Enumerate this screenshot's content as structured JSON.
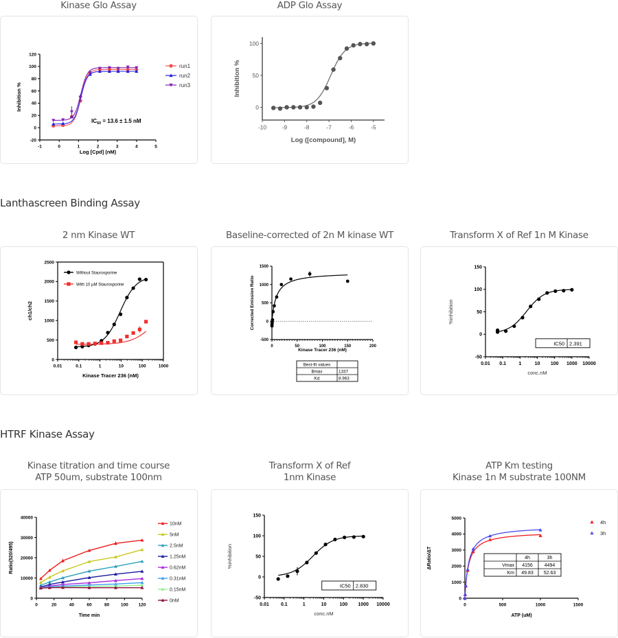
{
  "sections": [
    {
      "title": "Lanthascreen Binding Assay"
    },
    {
      "title": "HTRF Kinase Assay"
    }
  ],
  "panels": {
    "kinase_glo": {
      "title": "Kinase Glo Assay"
    },
    "adp_glo": {
      "title": "ADP Glo Assay"
    },
    "lantha_wt": {
      "title": "2 nm Kinase WT"
    },
    "lantha_baseline": {
      "title": "Baseline-corrected of 2n M kinase WT"
    },
    "lantha_transform": {
      "title": "Transform X of Ref  1n M Kinase"
    },
    "htrf_titration": {
      "title_line1": "Kinase titration and time course",
      "title_line2": "ATP 50um, substrate 100nm"
    },
    "htrf_transform": {
      "title_line1": "Transform X of Ref",
      "title_line2": "1nm Kinase"
    },
    "htrf_atp": {
      "title_line1": "ATP Km testing",
      "title_line2": "Kinase 1n M substrate 100NM"
    }
  },
  "chart_data": [
    {
      "id": "kinase_glo",
      "type": "line",
      "xlabel": "Log [Cpd] (nM)",
      "ylabel": "Inhibition %",
      "xlim": [
        -1,
        5
      ],
      "ylim": [
        -20,
        120
      ],
      "xticks": [
        -1,
        0,
        1,
        2,
        3,
        4,
        5
      ],
      "yticks": [
        -20,
        0,
        20,
        40,
        60,
        80,
        100,
        120
      ],
      "annotation": "IC50 = 13.6 ± 1.5 nM",
      "annotation_main": "IC",
      "annotation_sub": "50",
      "annotation_rest": " = 13.6 ± 1.5 nM",
      "legend_position": "right",
      "x": [
        -0.3,
        0.2,
        0.65,
        1.1,
        1.6,
        2.1,
        2.6,
        3.05,
        3.55,
        4.0
      ],
      "series": [
        {
          "name": "run1",
          "color": "#f05050",
          "marker": "circle",
          "values": [
            3,
            4,
            18,
            44,
            89,
            95,
            95,
            95,
            95,
            95
          ]
        },
        {
          "name": "run2",
          "color": "#2020e0",
          "marker": "triangle-up",
          "values": [
            6,
            7,
            18,
            52,
            87,
            92,
            92,
            92,
            92,
            92
          ]
        },
        {
          "name": "run3",
          "color": "#8020b0",
          "marker": "triangle-down",
          "values": [
            12,
            13,
            26,
            49,
            90,
            97,
            98,
            97,
            99,
            98
          ]
        }
      ]
    },
    {
      "id": "adp_glo",
      "type": "scatter",
      "xlabel": "Log ([compound], M)",
      "ylabel": "Inhibition %",
      "xlim": [
        -10,
        -4.5
      ],
      "ylim": [
        -20,
        110
      ],
      "xticks": [
        -10,
        -9,
        -8,
        -7,
        -6,
        -5
      ],
      "yticks": [
        0,
        50,
        100
      ],
      "color": "#555555",
      "x": [
        -9.5,
        -9.2,
        -8.9,
        -8.6,
        -8.3,
        -8.0,
        -7.7,
        -7.4,
        -7.1,
        -6.8,
        -6.5,
        -6.2,
        -5.9,
        -5.6,
        -5.3,
        -5.0
      ],
      "values": [
        -1,
        -2,
        0,
        0,
        0,
        0,
        1,
        7,
        30,
        59,
        77,
        92,
        97,
        99,
        99,
        100
      ]
    },
    {
      "id": "lantha_wt",
      "type": "line",
      "xlabel": "Kinase Tracer 236 (nM)",
      "ylabel": "ch1/ch2",
      "xscale": "log",
      "xlim": [
        0.01,
        1000
      ],
      "ylim": [
        0,
        2500
      ],
      "xticks": [
        "0.01",
        "0.1",
        "1",
        "10",
        "100",
        "1000"
      ],
      "yticks": [
        0,
        500,
        1000,
        1500,
        2000,
        2500
      ],
      "legend_position": "top-left",
      "x": [
        0.073,
        0.146,
        0.29,
        0.58,
        1.17,
        2.34,
        4.7,
        9.4,
        18.8,
        37.5,
        75,
        150
      ],
      "series": [
        {
          "name": "Without Staurosporine",
          "color": "#000000",
          "marker": "circle",
          "values": [
            310,
            330,
            360,
            400,
            480,
            690,
            900,
            1160,
            1590,
            1830,
            2060,
            2050
          ]
        },
        {
          "name": "With 10 µM Staurosporine",
          "color": "#f03030",
          "marker": "square",
          "values": [
            440,
            400,
            400,
            410,
            420,
            430,
            470,
            490,
            590,
            680,
            770,
            970
          ]
        }
      ]
    },
    {
      "id": "lantha_baseline",
      "type": "scatter",
      "xlabel": "Kinase Tracer 236 (nM)",
      "ylabel": "Corrected Emission Ratio",
      "xlim": [
        0,
        200
      ],
      "ylim": [
        -500,
        1500
      ],
      "xticks": [
        0,
        50,
        100,
        150,
        200
      ],
      "yticks": [
        -500,
        0,
        500,
        1000,
        1500
      ],
      "x": [
        0.073,
        0.146,
        0.29,
        0.58,
        1.17,
        2.34,
        4.7,
        9.4,
        18.8,
        37.5,
        75,
        150
      ],
      "values": [
        -130,
        -100,
        -60,
        -20,
        40,
        260,
        420,
        660,
        1000,
        1150,
        1290,
        1090
      ],
      "fit": {
        "Bmax": 1337,
        "Kd": 8.963
      },
      "table": {
        "header": "Best-fit values",
        "rows": [
          [
            "Bmax",
            "1337"
          ],
          [
            "Kd",
            "8.963"
          ]
        ]
      }
    },
    {
      "id": "lantha_transform",
      "type": "scatter",
      "xlabel": "conc.nM",
      "ylabel": "%inhibition",
      "xscale": "log",
      "xlim": [
        0.01,
        10000
      ],
      "ylim": [
        -50,
        150
      ],
      "xticks": [
        "0.01",
        "0.1",
        "1",
        "10",
        "100",
        "1000",
        "10000"
      ],
      "yticks": [
        -50,
        0,
        50,
        100,
        150
      ],
      "x": [
        0.05,
        0.15,
        0.46,
        1.4,
        4.1,
        12.3,
        37,
        111,
        333,
        1000
      ],
      "values": [
        9,
        7,
        18,
        37,
        62,
        78,
        92,
        96,
        97,
        99
      ],
      "table": {
        "rows": [
          [
            "IC50",
            "2.391"
          ]
        ]
      }
    },
    {
      "id": "htrf_titration",
      "type": "line",
      "xlabel": "Time min",
      "ylabel": "Ratio(520/495)",
      "xlim": [
        0,
        120
      ],
      "ylim": [
        0,
        40000
      ],
      "xticks": [
        0,
        20,
        40,
        60,
        80,
        100,
        120
      ],
      "yticks": [
        0,
        10000,
        20000,
        30000,
        40000
      ],
      "legend_position": "right",
      "x": [
        5,
        15,
        30,
        60,
        90,
        120
      ],
      "series": [
        {
          "name": "10nM",
          "color": "#ee1c1c",
          "values": [
            9700,
            13800,
            18500,
            23600,
            27100,
            28700
          ]
        },
        {
          "name": "5nM",
          "color": "#c8c81e",
          "values": [
            7800,
            10400,
            13500,
            18100,
            20400,
            24000
          ]
        },
        {
          "name": "2.5nM",
          "color": "#2aa0b8",
          "values": [
            6400,
            8000,
            10100,
            13400,
            15700,
            18200
          ]
        },
        {
          "name": "1.25nM",
          "color": "#1a1aa0",
          "values": [
            5600,
            6800,
            8000,
            10200,
            11900,
            13300
          ]
        },
        {
          "name": "0.62nM",
          "color": "#a828e0",
          "values": [
            5300,
            6000,
            6800,
            7600,
            8700,
            9700
          ]
        },
        {
          "name": "0.31nM",
          "color": "#3c9cf0",
          "values": [
            5200,
            5600,
            6000,
            6500,
            7000,
            7700
          ]
        },
        {
          "name": "0.15nM",
          "color": "#8ef08e",
          "values": [
            5100,
            5300,
            5500,
            5800,
            6000,
            6400
          ]
        },
        {
          "name": "0nM",
          "color": "#900a3c",
          "values": [
            5000,
            5200,
            5300,
            5200,
            5200,
            5200
          ]
        }
      ]
    },
    {
      "id": "htrf_transform",
      "type": "scatter",
      "xlabel": "conc.nM",
      "ylabel": "%inhibition",
      "xscale": "log",
      "xlim": [
        0.01,
        10000
      ],
      "ylim": [
        -50,
        150
      ],
      "xticks": [
        "0.01",
        "0.1",
        "1",
        "10",
        "100",
        "1000",
        "10000"
      ],
      "yticks": [
        -50,
        0,
        50,
        100,
        150
      ],
      "x": [
        0.05,
        0.15,
        0.46,
        1.4,
        4.1,
        12.3,
        37,
        111,
        333,
        1000
      ],
      "values": [
        -5,
        2,
        14,
        35,
        58,
        79,
        91,
        96,
        97,
        98
      ],
      "table": {
        "rows": [
          [
            "IC50",
            "2.830"
          ]
        ]
      }
    },
    {
      "id": "htrf_atp",
      "type": "scatter",
      "xlabel": "ATP (uM)",
      "ylabel": "ΔRatio/ΔT",
      "xlim": [
        0,
        1500
      ],
      "ylim": [
        0,
        5000
      ],
      "xticks": [
        0,
        500,
        1000,
        1500
      ],
      "yticks": [
        0,
        1000,
        2000,
        3000,
        4000,
        5000
      ],
      "legend_position": "right",
      "x": [
        0,
        4,
        12,
        37,
        111,
        333,
        1000
      ],
      "series": [
        {
          "name": "4h",
          "color": "#ee1c1c",
          "Vmax": 4156,
          "Km": 49.83,
          "values": [
            0,
            220,
            760,
            1730,
            2900,
            3650,
            3900
          ]
        },
        {
          "name": "3h",
          "color": "#4848f0",
          "Vmax": 4494,
          "Km": 52.63,
          "values": [
            0,
            250,
            800,
            1800,
            3080,
            3880,
            4250
          ]
        }
      ],
      "table": {
        "header": [
          "",
          "4h",
          "3h"
        ],
        "rows": [
          [
            "Vmax",
            "4156",
            "4494"
          ],
          [
            "Km",
            "49.83",
            "52.63"
          ]
        ]
      }
    }
  ]
}
